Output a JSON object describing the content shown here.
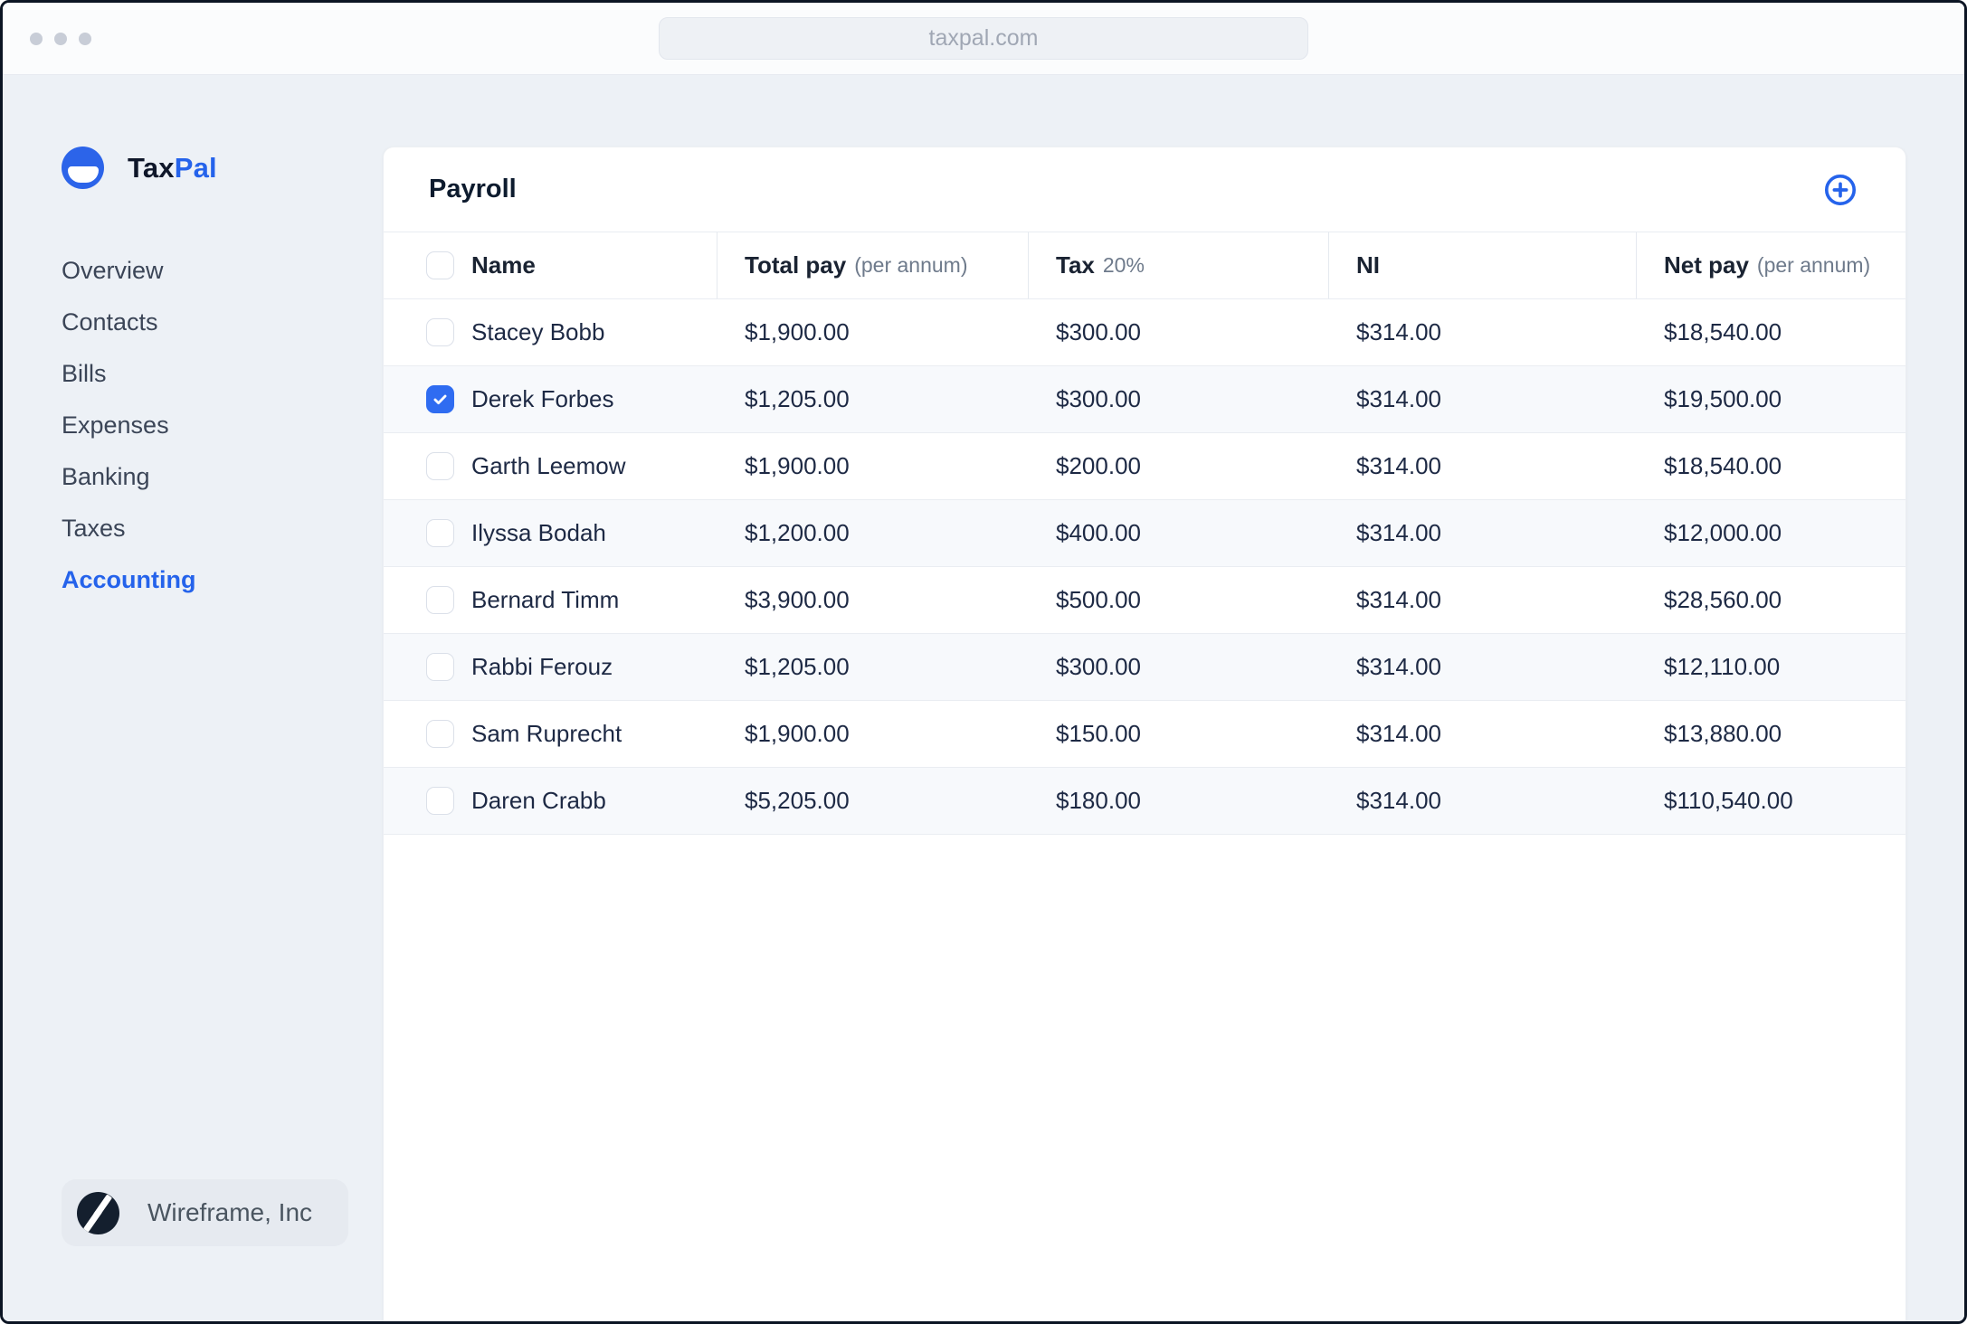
{
  "browser": {
    "url": "taxpal.com"
  },
  "sidebar": {
    "logo": {
      "text_primary": "Tax",
      "text_secondary": "Pal"
    },
    "items": [
      {
        "label": "Overview",
        "active": false
      },
      {
        "label": "Contacts",
        "active": false
      },
      {
        "label": "Bills",
        "active": false
      },
      {
        "label": "Expenses",
        "active": false
      },
      {
        "label": "Banking",
        "active": false
      },
      {
        "label": "Taxes",
        "active": false
      },
      {
        "label": "Accounting",
        "active": true
      }
    ],
    "footer": {
      "company": "Wireframe, Inc",
      "logo_icon": "double-slash-icon"
    }
  },
  "main": {
    "title": "Payroll",
    "add_icon": "circle-plus-icon",
    "table": {
      "columns": [
        {
          "label": "Name",
          "sublabel": ""
        },
        {
          "label": "Total pay",
          "sublabel": "(per annum)"
        },
        {
          "label": "Tax",
          "sublabel": "20%"
        },
        {
          "label": "NI",
          "sublabel": ""
        },
        {
          "label": "Net pay",
          "sublabel": "(per annum)"
        }
      ],
      "rows": [
        {
          "name": "Stacey Bobb",
          "total_pay": "$1,900.00",
          "tax": "$300.00",
          "ni": "$314.00",
          "net_pay": "$18,540.00",
          "checked": false
        },
        {
          "name": "Derek Forbes",
          "total_pay": "$1,205.00",
          "tax": "$300.00",
          "ni": "$314.00",
          "net_pay": "$19,500.00",
          "checked": true
        },
        {
          "name": "Garth Leemow",
          "total_pay": "$1,900.00",
          "tax": "$200.00",
          "ni": "$314.00",
          "net_pay": "$18,540.00",
          "checked": false
        },
        {
          "name": "Ilyssa Bodah",
          "total_pay": "$1,200.00",
          "tax": "$400.00",
          "ni": "$314.00",
          "net_pay": "$12,000.00",
          "checked": false
        },
        {
          "name": "Bernard Timm",
          "total_pay": "$3,900.00",
          "tax": "$500.00",
          "ni": "$314.00",
          "net_pay": "$28,560.00",
          "checked": false
        },
        {
          "name": "Rabbi Ferouz",
          "total_pay": "$1,205.00",
          "tax": "$300.00",
          "ni": "$314.00",
          "net_pay": "$12,110.00",
          "checked": false
        },
        {
          "name": "Sam Ruprecht",
          "total_pay": "$1,900.00",
          "tax": "$150.00",
          "ni": "$314.00",
          "net_pay": "$13,880.00",
          "checked": false
        },
        {
          "name": "Daren Crabb",
          "total_pay": "$5,205.00",
          "tax": "$180.00",
          "ni": "$314.00",
          "net_pay": "$110,540.00",
          "checked": false
        }
      ]
    }
  },
  "colors": {
    "accent_blue": "#2563eb",
    "checkbox_checked": "#2f6cf1",
    "logo_circle": "#2c64e9",
    "app_background": "#edf1f6",
    "card_background": "#ffffff",
    "alt_row_background": "#f7f9fc",
    "dark_navy": "#0f172a"
  }
}
